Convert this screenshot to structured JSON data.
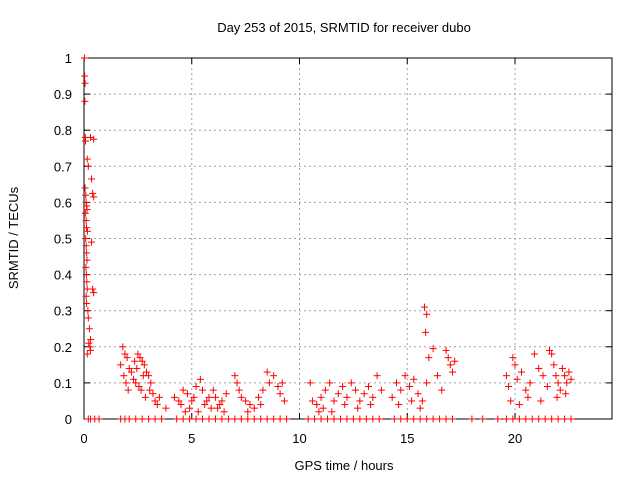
{
  "chart_data": {
    "type": "scatter",
    "title": "Day 253 of 2015, SRMTID for receiver dubo",
    "xlabel": "GPS time / hours",
    "ylabel": "SRMTID / TECUs",
    "xlim": [
      0,
      24.5
    ],
    "ylim": [
      0,
      1
    ],
    "x_ticks": [
      0,
      5,
      10,
      15,
      20
    ],
    "x_tick_labels": [
      "0",
      "5",
      "10",
      "15",
      "20"
    ],
    "y_ticks": [
      0,
      0.1,
      0.2,
      0.3,
      0.4,
      0.5,
      0.6,
      0.7,
      0.8,
      0.9,
      1
    ],
    "y_tick_labels": [
      "0",
      "0.1",
      "0.2",
      "0.3",
      "0.4",
      "0.5",
      "0.6",
      "0.7",
      "0.8",
      "0.9",
      "1"
    ],
    "grid": true,
    "marker": "+",
    "series": [
      {
        "name": "SRMTID",
        "color": "#ff0000",
        "points": [
          [
            0.02,
            1.0
          ],
          [
            0.03,
            0.95
          ],
          [
            0.05,
            0.93
          ],
          [
            0.04,
            0.88
          ],
          [
            0.06,
            0.78
          ],
          [
            0.07,
            0.77
          ],
          [
            0.3,
            0.78
          ],
          [
            0.45,
            0.775
          ],
          [
            0.15,
            0.72
          ],
          [
            0.2,
            0.7
          ],
          [
            0.35,
            0.665
          ],
          [
            0.05,
            0.64
          ],
          [
            0.08,
            0.62
          ],
          [
            0.1,
            0.6
          ],
          [
            0.12,
            0.59
          ],
          [
            0.14,
            0.58
          ],
          [
            0.06,
            0.57
          ],
          [
            0.4,
            0.625
          ],
          [
            0.45,
            0.615
          ],
          [
            0.1,
            0.55
          ],
          [
            0.12,
            0.53
          ],
          [
            0.16,
            0.52
          ],
          [
            0.08,
            0.5
          ],
          [
            0.35,
            0.49
          ],
          [
            0.1,
            0.48
          ],
          [
            0.12,
            0.46
          ],
          [
            0.14,
            0.44
          ],
          [
            0.09,
            0.42
          ],
          [
            0.11,
            0.4
          ],
          [
            0.13,
            0.38
          ],
          [
            0.15,
            0.36
          ],
          [
            0.4,
            0.36
          ],
          [
            0.45,
            0.35
          ],
          [
            0.1,
            0.34
          ],
          [
            0.12,
            0.32
          ],
          [
            0.18,
            0.3
          ],
          [
            0.2,
            0.28
          ],
          [
            0.25,
            0.25
          ],
          [
            0.3,
            0.22
          ],
          [
            0.22,
            0.21
          ],
          [
            0.28,
            0.2
          ],
          [
            0.3,
            0.19
          ],
          [
            0.15,
            0.18
          ],
          [
            1.8,
            0.2
          ],
          [
            1.9,
            0.18
          ],
          [
            2.0,
            0.17
          ],
          [
            1.7,
            0.15
          ],
          [
            1.85,
            0.12
          ],
          [
            2.1,
            0.14
          ],
          [
            2.2,
            0.13
          ],
          [
            2.3,
            0.11
          ],
          [
            2.4,
            0.1
          ],
          [
            2.5,
            0.18
          ],
          [
            2.6,
            0.17
          ],
          [
            2.7,
            0.16
          ],
          [
            2.8,
            0.15
          ],
          [
            2.9,
            0.13
          ],
          [
            3.0,
            0.12
          ],
          [
            3.1,
            0.1
          ],
          [
            2.55,
            0.09
          ],
          [
            2.65,
            0.08
          ],
          [
            3.2,
            0.07
          ],
          [
            3.3,
            0.05
          ],
          [
            3.4,
            0.04
          ],
          [
            3.5,
            0.06
          ],
          [
            3.8,
            0.03
          ],
          [
            1.95,
            0.1
          ],
          [
            2.05,
            0.08
          ],
          [
            2.35,
            0.16
          ],
          [
            2.45,
            0.14
          ],
          [
            2.75,
            0.12
          ],
          [
            2.85,
            0.06
          ],
          [
            3.05,
            0.08
          ],
          [
            4.2,
            0.06
          ],
          [
            4.4,
            0.05
          ],
          [
            4.6,
            0.08
          ],
          [
            4.8,
            0.07
          ],
          [
            5.0,
            0.05
          ],
          [
            5.2,
            0.09
          ],
          [
            5.4,
            0.11
          ],
          [
            5.6,
            0.04
          ],
          [
            5.8,
            0.06
          ],
          [
            6.0,
            0.08
          ],
          [
            6.2,
            0.03
          ],
          [
            6.4,
            0.05
          ],
          [
            6.6,
            0.07
          ],
          [
            4.9,
            0.03
          ],
          [
            5.1,
            0.06
          ],
          [
            5.3,
            0.02
          ],
          [
            5.5,
            0.08
          ],
          [
            5.7,
            0.05
          ],
          [
            5.9,
            0.03
          ],
          [
            6.1,
            0.06
          ],
          [
            6.3,
            0.04
          ],
          [
            6.5,
            0.02
          ],
          [
            4.5,
            0.04
          ],
          [
            4.7,
            0.02
          ],
          [
            7.0,
            0.12
          ],
          [
            7.1,
            0.1
          ],
          [
            7.2,
            0.08
          ],
          [
            7.3,
            0.06
          ],
          [
            7.5,
            0.05
          ],
          [
            7.7,
            0.04
          ],
          [
            7.9,
            0.03
          ],
          [
            8.1,
            0.06
          ],
          [
            8.3,
            0.08
          ],
          [
            8.5,
            0.13
          ],
          [
            8.6,
            0.1
          ],
          [
            8.8,
            0.12
          ],
          [
            9.0,
            0.09
          ],
          [
            9.1,
            0.07
          ],
          [
            9.3,
            0.05
          ],
          [
            9.2,
            0.1
          ],
          [
            8.2,
            0.04
          ],
          [
            7.6,
            0.02
          ],
          [
            10.5,
            0.1
          ],
          [
            10.6,
            0.05
          ],
          [
            10.8,
            0.04
          ],
          [
            10.9,
            0.02
          ],
          [
            11.0,
            0.06
          ],
          [
            11.2,
            0.08
          ],
          [
            11.4,
            0.1
          ],
          [
            11.6,
            0.05
          ],
          [
            11.8,
            0.07
          ],
          [
            12.0,
            0.09
          ],
          [
            12.2,
            0.06
          ],
          [
            12.4,
            0.1
          ],
          [
            12.6,
            0.08
          ],
          [
            12.8,
            0.05
          ],
          [
            13.0,
            0.07
          ],
          [
            13.2,
            0.09
          ],
          [
            13.4,
            0.06
          ],
          [
            13.6,
            0.12
          ],
          [
            13.8,
            0.08
          ],
          [
            11.1,
            0.03
          ],
          [
            11.5,
            0.02
          ],
          [
            12.1,
            0.04
          ],
          [
            12.7,
            0.03
          ],
          [
            13.3,
            0.04
          ],
          [
            14.3,
            0.06
          ],
          [
            14.5,
            0.1
          ],
          [
            14.7,
            0.08
          ],
          [
            14.9,
            0.12
          ],
          [
            15.1,
            0.09
          ],
          [
            15.3,
            0.11
          ],
          [
            15.5,
            0.07
          ],
          [
            15.7,
            0.05
          ],
          [
            15.9,
            0.1
          ],
          [
            15.8,
            0.31
          ],
          [
            15.9,
            0.29
          ],
          [
            15.85,
            0.24
          ],
          [
            16.0,
            0.17
          ],
          [
            16.2,
            0.195
          ],
          [
            16.4,
            0.12
          ],
          [
            16.6,
            0.08
          ],
          [
            16.8,
            0.19
          ],
          [
            16.9,
            0.17
          ],
          [
            17.0,
            0.15
          ],
          [
            17.1,
            0.13
          ],
          [
            17.2,
            0.16
          ],
          [
            14.6,
            0.04
          ],
          [
            15.2,
            0.05
          ],
          [
            15.6,
            0.03
          ],
          [
            19.6,
            0.12
          ],
          [
            19.7,
            0.09
          ],
          [
            19.8,
            0.05
          ],
          [
            19.9,
            0.17
          ],
          [
            20.0,
            0.15
          ],
          [
            20.1,
            0.11
          ],
          [
            20.3,
            0.13
          ],
          [
            20.5,
            0.08
          ],
          [
            20.7,
            0.1
          ],
          [
            20.9,
            0.18
          ],
          [
            21.1,
            0.14
          ],
          [
            21.3,
            0.12
          ],
          [
            21.5,
            0.09
          ],
          [
            21.6,
            0.19
          ],
          [
            21.7,
            0.18
          ],
          [
            21.8,
            0.15
          ],
          [
            21.9,
            0.12
          ],
          [
            22.0,
            0.1
          ],
          [
            22.1,
            0.08
          ],
          [
            22.2,
            0.14
          ],
          [
            22.3,
            0.12
          ],
          [
            22.4,
            0.1
          ],
          [
            22.5,
            0.13
          ],
          [
            22.6,
            0.11
          ],
          [
            20.2,
            0.04
          ],
          [
            20.6,
            0.06
          ],
          [
            21.2,
            0.05
          ],
          [
            21.95,
            0.06
          ],
          [
            22.35,
            0.07
          ],
          [
            0.2,
            0.0
          ],
          [
            0.3,
            0.0
          ],
          [
            0.5,
            0.0
          ],
          [
            0.7,
            0.0
          ],
          [
            1.7,
            0.0
          ],
          [
            1.9,
            0.0
          ],
          [
            2.1,
            0.0
          ],
          [
            2.4,
            0.0
          ],
          [
            2.7,
            0.0
          ],
          [
            3.0,
            0.0
          ],
          [
            3.3,
            0.0
          ],
          [
            3.6,
            0.0
          ],
          [
            4.3,
            0.0
          ],
          [
            4.6,
            0.0
          ],
          [
            4.9,
            0.0
          ],
          [
            5.2,
            0.0
          ],
          [
            5.5,
            0.0
          ],
          [
            5.8,
            0.0
          ],
          [
            6.1,
            0.0
          ],
          [
            6.4,
            0.0
          ],
          [
            6.7,
            0.0
          ],
          [
            7.0,
            0.0
          ],
          [
            7.3,
            0.0
          ],
          [
            7.6,
            0.0
          ],
          [
            7.9,
            0.0
          ],
          [
            8.2,
            0.0
          ],
          [
            8.5,
            0.0
          ],
          [
            8.8,
            0.0
          ],
          [
            9.1,
            0.0
          ],
          [
            9.4,
            0.0
          ],
          [
            10.4,
            0.0
          ],
          [
            10.7,
            0.0
          ],
          [
            11.0,
            0.0
          ],
          [
            11.3,
            0.0
          ],
          [
            11.6,
            0.0
          ],
          [
            11.9,
            0.0
          ],
          [
            12.2,
            0.0
          ],
          [
            12.5,
            0.0
          ],
          [
            12.8,
            0.0
          ],
          [
            13.1,
            0.0
          ],
          [
            13.4,
            0.0
          ],
          [
            13.7,
            0.0
          ],
          [
            14.4,
            0.0
          ],
          [
            14.7,
            0.0
          ],
          [
            15.0,
            0.0
          ],
          [
            15.3,
            0.0
          ],
          [
            15.6,
            0.0
          ],
          [
            15.9,
            0.0
          ],
          [
            16.2,
            0.0
          ],
          [
            16.5,
            0.0
          ],
          [
            16.8,
            0.0
          ],
          [
            17.1,
            0.0
          ],
          [
            18.0,
            0.0
          ],
          [
            18.5,
            0.0
          ],
          [
            19.2,
            0.0
          ],
          [
            19.6,
            0.0
          ],
          [
            19.9,
            0.0
          ],
          [
            20.2,
            0.0
          ],
          [
            20.5,
            0.0
          ],
          [
            20.8,
            0.0
          ],
          [
            21.1,
            0.0
          ],
          [
            21.4,
            0.0
          ],
          [
            21.7,
            0.0
          ],
          [
            22.0,
            0.0
          ],
          [
            22.3,
            0.0
          ],
          [
            22.6,
            0.0
          ]
        ]
      }
    ]
  }
}
